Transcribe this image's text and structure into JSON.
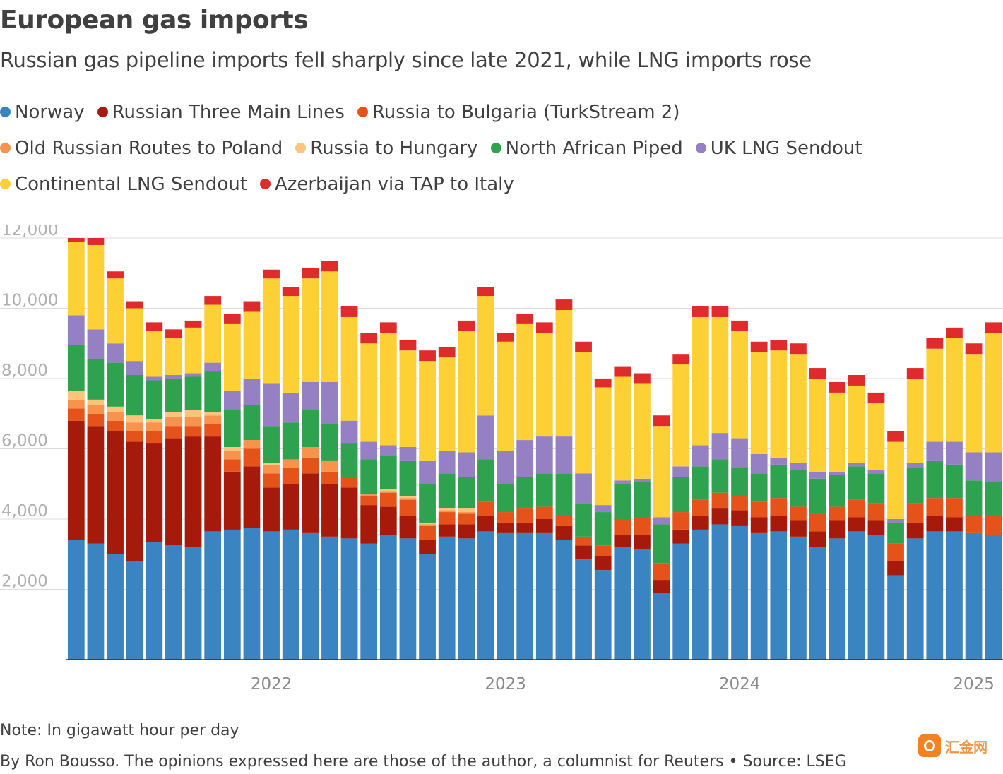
{
  "title": "European gas imports",
  "subtitle": "Russian gas pipeline imports fell sharply since late 2021, while LNG imports rose",
  "note": "Note: In gigawatt hour per day",
  "byline": "By Ron Bousso. The opinions expressed here are those of the author, a columnist for Reuters • Source: LSEG",
  "watermark": "汇金网",
  "chart_data": {
    "type": "bar",
    "stacked": true,
    "yticks": [
      "2,000",
      "4,000",
      "6,000",
      "8,000",
      "10,000",
      "12,000"
    ],
    "ylim": [
      0,
      12000
    ],
    "gridlines": true,
    "legend_position": "top",
    "xticks": [
      {
        "label": "2022",
        "index": 10.5
      },
      {
        "label": "2023",
        "index": 22.5
      },
      {
        "label": "2024",
        "index": 34.5
      },
      {
        "label": "2025",
        "index": 46.5
      }
    ],
    "series": [
      {
        "name": "Norway",
        "color": "#3a85c1",
        "values": [
          3400,
          3300,
          3000,
          2800,
          3350,
          3250,
          3200,
          3650,
          3700,
          3750,
          3650,
          3700,
          3600,
          3500,
          3450,
          3300,
          3550,
          3450,
          3000,
          3500,
          3450,
          3650,
          3600,
          3600,
          3600,
          3400,
          2850,
          2550,
          3200,
          3150,
          1900,
          3300,
          3700,
          3850,
          3800,
          3600,
          3650,
          3500,
          3200,
          3450,
          3650,
          3550,
          2400,
          3450,
          3650,
          3650,
          3600,
          3550
        ]
      },
      {
        "name": "Russian Three Main Lines",
        "color": "#a51a0a",
        "values": [
          3400,
          3350,
          3500,
          3400,
          2800,
          3050,
          3150,
          2700,
          1650,
          1750,
          1250,
          1300,
          1700,
          1500,
          1450,
          1100,
          800,
          650,
          400,
          350,
          400,
          450,
          300,
          300,
          400,
          400,
          400,
          400,
          350,
          400,
          350,
          400,
          400,
          450,
          450,
          450,
          450,
          450,
          450,
          500,
          400,
          400,
          400,
          450,
          450,
          400,
          0,
          0
        ]
      },
      {
        "name": "Russia to Bulgaria (TurkStream 2)",
        "color": "#e5531a",
        "values": [
          350,
          350,
          300,
          300,
          350,
          350,
          300,
          350,
          350,
          500,
          400,
          450,
          450,
          350,
          300,
          250,
          400,
          450,
          400,
          350,
          300,
          400,
          300,
          400,
          350,
          300,
          250,
          300,
          450,
          500,
          500,
          500,
          450,
          450,
          400,
          450,
          500,
          400,
          500,
          400,
          500,
          500,
          500,
          550,
          500,
          550,
          500,
          550
        ]
      },
      {
        "name": "Old Russian Routes to Poland",
        "color": "#f7934c",
        "values": [
          250,
          250,
          250,
          250,
          250,
          250,
          250,
          250,
          250,
          250,
          250,
          250,
          300,
          300,
          0,
          50,
          50,
          50,
          50,
          50,
          50,
          0,
          0,
          0,
          0,
          0,
          0,
          0,
          0,
          0,
          0,
          0,
          0,
          0,
          0,
          0,
          0,
          0,
          0,
          0,
          0,
          0,
          0,
          0,
          0,
          0,
          0,
          0
        ]
      },
      {
        "name": "Russia to Hungary",
        "color": "#fbc47a",
        "values": [
          250,
          150,
          150,
          200,
          100,
          150,
          200,
          100,
          100,
          0,
          50,
          0,
          0,
          0,
          0,
          0,
          50,
          50,
          50,
          50,
          100,
          0,
          0,
          0,
          0,
          0,
          0,
          0,
          0,
          0,
          0,
          0,
          0,
          0,
          0,
          0,
          0,
          0,
          0,
          0,
          0,
          0,
          0,
          0,
          0,
          0,
          0,
          0
        ]
      },
      {
        "name": "North African Piped",
        "color": "#2ea24e",
        "values": [
          1300,
          1150,
          1250,
          1150,
          1100,
          950,
          950,
          1150,
          1050,
          1000,
          1050,
          1050,
          1050,
          1050,
          950,
          1000,
          950,
          1000,
          1100,
          1000,
          900,
          1200,
          800,
          900,
          950,
          1200,
          950,
          950,
          1000,
          1000,
          1100,
          1000,
          950,
          950,
          800,
          800,
          950,
          1050,
          1000,
          900,
          950,
          850,
          600,
          1000,
          1050,
          950,
          1000,
          950
        ]
      },
      {
        "name": "UK LNG Sendout",
        "color": "#9480c2",
        "values": [
          850,
          850,
          550,
          400,
          100,
          100,
          100,
          250,
          550,
          750,
          1200,
          850,
          800,
          1200,
          650,
          500,
          300,
          400,
          650,
          650,
          700,
          1250,
          950,
          1050,
          1050,
          1050,
          850,
          200,
          100,
          100,
          200,
          300,
          600,
          750,
          850,
          550,
          200,
          200,
          200,
          100,
          100,
          100,
          100,
          150,
          550,
          650,
          800,
          850
        ]
      },
      {
        "name": "Continental LNG Sendout",
        "color": "#fdd035",
        "values": [
          2100,
          2400,
          1850,
          1500,
          1300,
          1050,
          1300,
          1650,
          1900,
          1900,
          3000,
          2750,
          2950,
          3150,
          2950,
          2800,
          3200,
          2750,
          2850,
          2650,
          3450,
          3400,
          3100,
          3300,
          2950,
          3600,
          3450,
          3350,
          2950,
          2700,
          2600,
          2900,
          3650,
          3300,
          3050,
          2900,
          3050,
          3100,
          2650,
          2250,
          2200,
          1900,
          2200,
          2400,
          2650,
          2950,
          2800,
          3400
        ]
      },
      {
        "name": "Azerbaijan via TAP to Italy",
        "color": "#df2b2b",
        "values": [
          100,
          200,
          200,
          200,
          250,
          250,
          200,
          250,
          300,
          300,
          250,
          250,
          300,
          300,
          300,
          300,
          300,
          300,
          300,
          300,
          300,
          250,
          250,
          300,
          300,
          300,
          300,
          250,
          300,
          300,
          300,
          300,
          300,
          300,
          300,
          300,
          300,
          300,
          300,
          300,
          300,
          300,
          300,
          300,
          300,
          300,
          300,
          300
        ]
      }
    ]
  }
}
